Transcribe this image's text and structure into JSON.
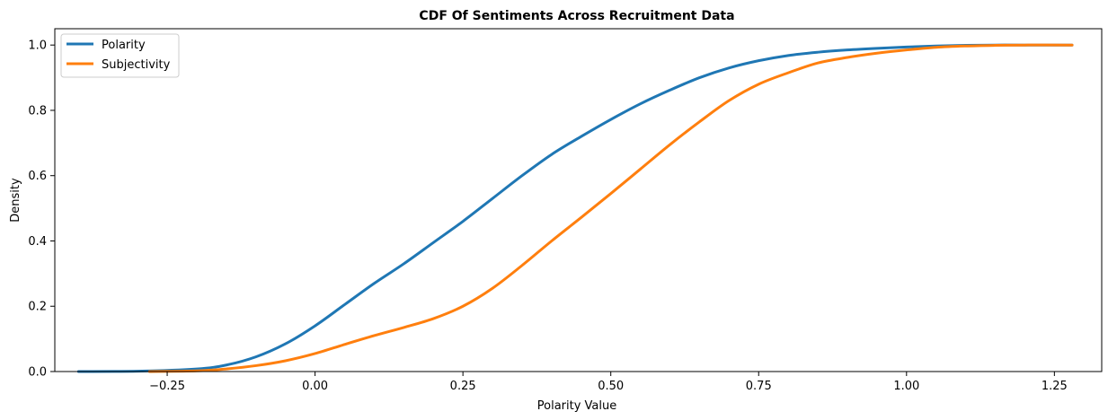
{
  "chart_data": {
    "type": "line",
    "title": "CDF Of Sentiments Across Recruitment Data",
    "xlabel": "Polarity Value",
    "ylabel": "Density",
    "xlim": [
      -0.44,
      1.33
    ],
    "ylim": [
      0,
      1.05
    ],
    "xticks": [
      -0.25,
      0.0,
      0.25,
      0.5,
      0.75,
      1.0,
      1.25
    ],
    "xtick_labels": [
      "−0.25",
      "0.00",
      "0.25",
      "0.50",
      "0.75",
      "1.00",
      "1.25"
    ],
    "yticks": [
      0.0,
      0.2,
      0.4,
      0.6,
      0.8,
      1.0
    ],
    "ytick_labels": [
      "0.0",
      "0.2",
      "0.4",
      "0.6",
      "0.8",
      "1.0"
    ],
    "grid": false,
    "legend_position": "top-left",
    "series": [
      {
        "name": "Polarity",
        "color": "#1f77b4",
        "x": [
          -0.4,
          -0.3,
          -0.2,
          -0.15,
          -0.1,
          -0.05,
          0.0,
          0.05,
          0.1,
          0.15,
          0.2,
          0.25,
          0.3,
          0.35,
          0.4,
          0.45,
          0.5,
          0.55,
          0.6,
          0.65,
          0.7,
          0.75,
          0.8,
          0.85,
          0.9,
          0.95,
          1.0,
          1.05,
          1.1,
          1.15,
          1.2,
          1.28
        ],
        "y": [
          0.0,
          0.001,
          0.008,
          0.02,
          0.045,
          0.085,
          0.14,
          0.205,
          0.27,
          0.33,
          0.395,
          0.46,
          0.53,
          0.6,
          0.665,
          0.72,
          0.772,
          0.82,
          0.862,
          0.9,
          0.93,
          0.952,
          0.968,
          0.978,
          0.985,
          0.99,
          0.994,
          0.997,
          0.999,
          1.0,
          1.0,
          1.0
        ]
      },
      {
        "name": "Subjectivity",
        "color": "#ff7f0e",
        "x": [
          -0.28,
          -0.2,
          -0.15,
          -0.1,
          -0.05,
          0.0,
          0.05,
          0.1,
          0.15,
          0.2,
          0.25,
          0.3,
          0.35,
          0.4,
          0.45,
          0.5,
          0.55,
          0.6,
          0.65,
          0.7,
          0.75,
          0.8,
          0.85,
          0.9,
          0.95,
          1.0,
          1.05,
          1.1,
          1.15,
          1.2,
          1.28
        ],
        "y": [
          0.0,
          0.002,
          0.008,
          0.018,
          0.033,
          0.055,
          0.083,
          0.11,
          0.135,
          0.162,
          0.2,
          0.255,
          0.325,
          0.4,
          0.472,
          0.545,
          0.62,
          0.695,
          0.765,
          0.83,
          0.88,
          0.915,
          0.945,
          0.962,
          0.975,
          0.985,
          0.993,
          0.997,
          0.999,
          1.0,
          1.0
        ]
      }
    ]
  }
}
